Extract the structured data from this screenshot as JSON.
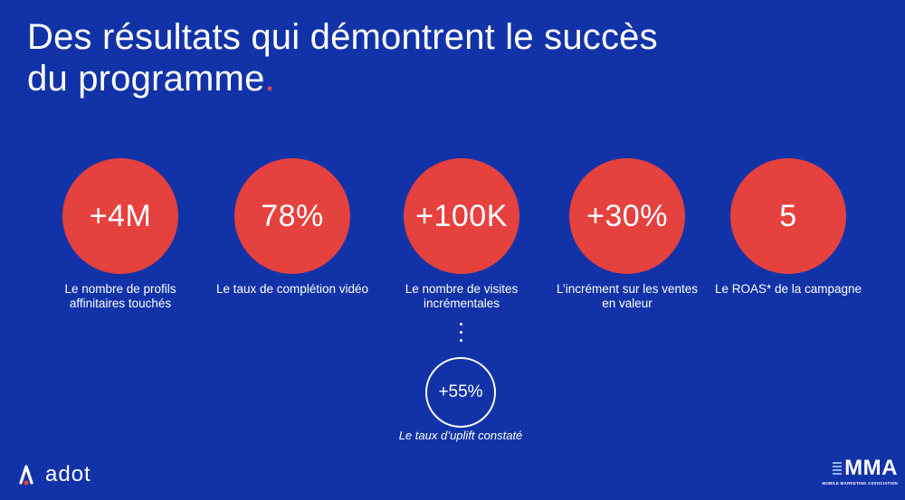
{
  "title": {
    "line1": "Des résultats qui démontrent le succès",
    "line2": "du programme",
    "dot": "."
  },
  "stats": [
    {
      "value": "+4M",
      "label": "Le nombre de profils affinitaires touchés"
    },
    {
      "value": "78%",
      "label": "Le taux de complétion vidéo"
    },
    {
      "value": "+100K",
      "label": "Le nombre de visites incrémentales"
    },
    {
      "value": "+30%",
      "label": "L’incrément sur les ventes en valeur"
    },
    {
      "value": "5",
      "label": "Le ROAS* de la campagne"
    }
  ],
  "sub_stat": {
    "value": "+55%",
    "label": "Le taux d’uplift constaté"
  },
  "brand": {
    "name": "adot",
    "icon": "adot-logo-icon"
  },
  "partner": {
    "name": "MMA",
    "tagline": "MOBILE MARKETING ASSOCIATION"
  },
  "colors": {
    "background": "#1233a8",
    "accent": "#e5413e"
  }
}
